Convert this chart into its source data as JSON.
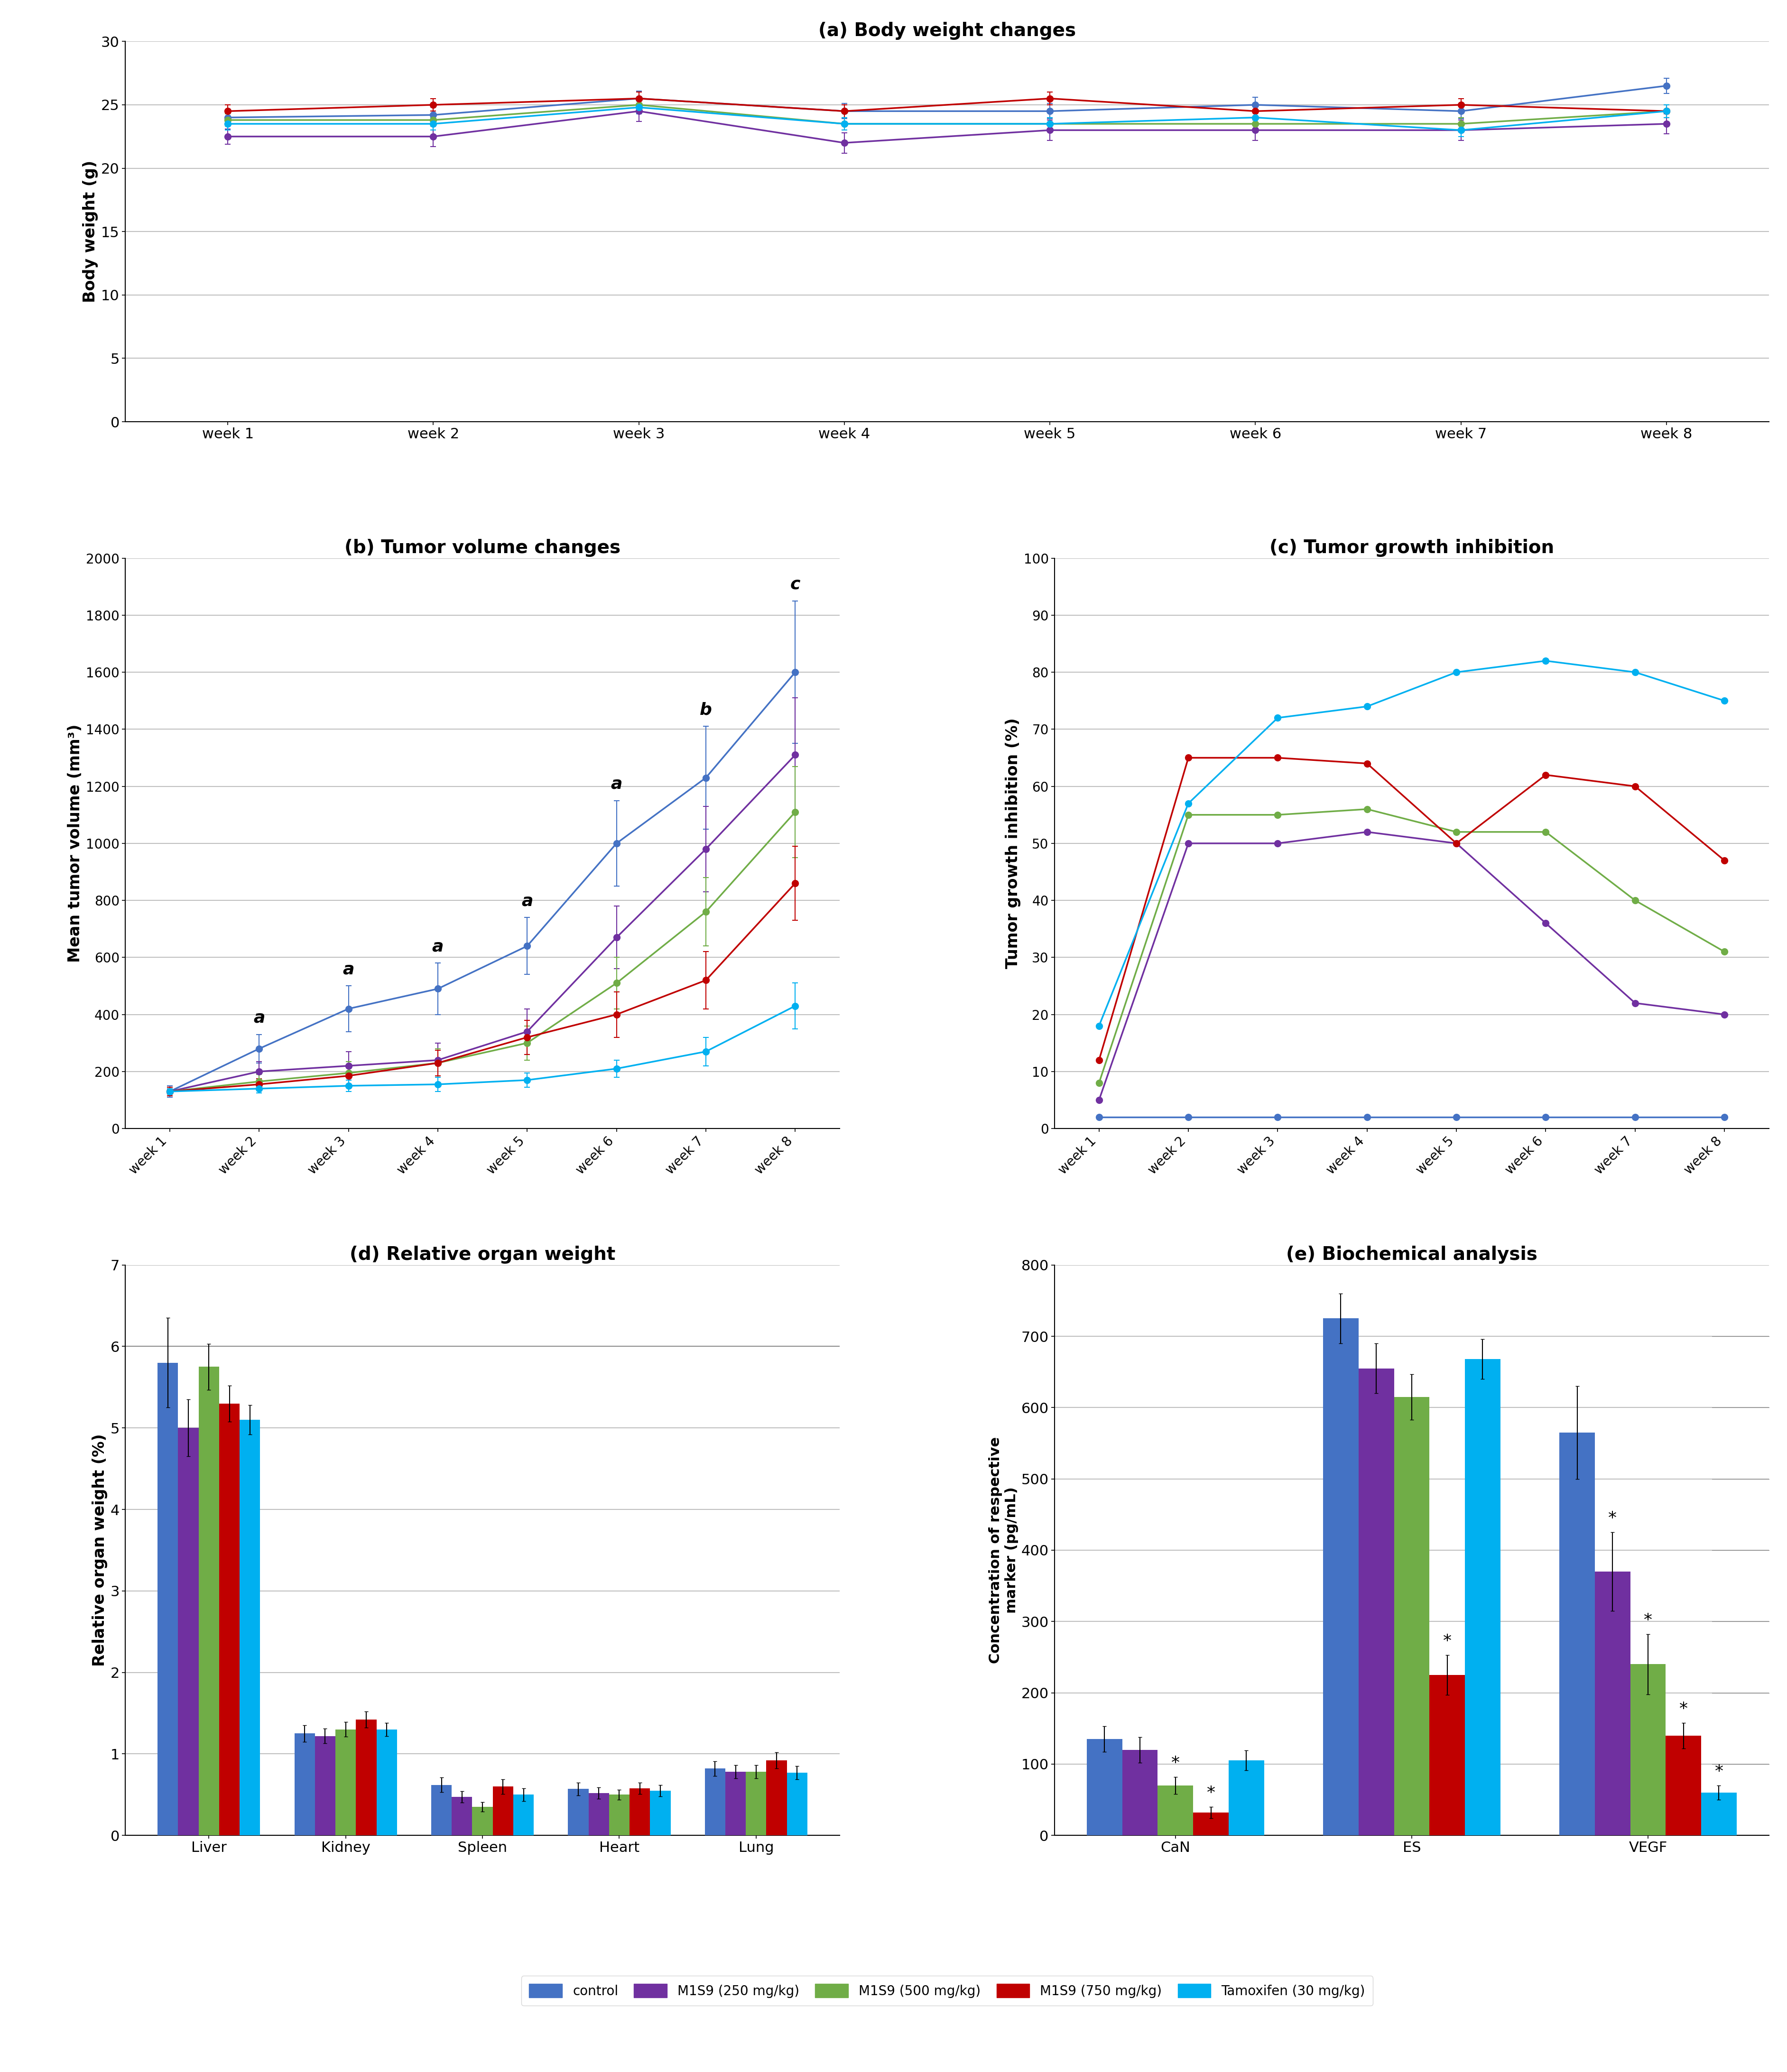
{
  "title_a": "(a) Body weight changes",
  "title_b": "(b) Tumor volume changes",
  "title_c": "(c) Tumor growth inhibition",
  "title_d": "(d) Relative organ weight",
  "title_e": "(e) Biochemical analysis",
  "weeks": [
    "week 1",
    "week 2",
    "week 3",
    "week 4",
    "week 5",
    "week 6",
    "week 7",
    "week 8"
  ],
  "body_weight": {
    "control": [
      24.0,
      24.2,
      25.5,
      24.5,
      24.5,
      25.0,
      24.5,
      26.5
    ],
    "M1S9_250": [
      22.5,
      22.5,
      24.5,
      22.0,
      23.0,
      23.0,
      23.0,
      23.5
    ],
    "M1S9_500": [
      23.8,
      23.8,
      25.0,
      23.5,
      23.5,
      23.5,
      23.5,
      24.5
    ],
    "M1S9_750": [
      24.5,
      25.0,
      25.5,
      24.5,
      25.5,
      24.5,
      25.0,
      24.5
    ],
    "Tamoxifen": [
      23.5,
      23.5,
      24.8,
      23.5,
      23.5,
      24.0,
      23.0,
      24.5
    ]
  },
  "body_weight_err": {
    "control": [
      0.6,
      0.6,
      0.6,
      0.6,
      0.6,
      0.6,
      0.6,
      0.6
    ],
    "M1S9_250": [
      0.6,
      0.8,
      0.8,
      0.8,
      0.8,
      0.8,
      0.8,
      0.8
    ],
    "M1S9_500": [
      0.5,
      0.5,
      0.5,
      0.5,
      0.5,
      0.5,
      0.5,
      0.5
    ],
    "M1S9_750": [
      0.5,
      0.5,
      0.5,
      0.5,
      0.5,
      0.5,
      0.5,
      0.5
    ],
    "Tamoxifen": [
      0.5,
      0.5,
      0.5,
      0.5,
      0.5,
      0.5,
      0.5,
      0.5
    ]
  },
  "tumor_volume": {
    "control": [
      130,
      280,
      420,
      490,
      640,
      1000,
      1230,
      1600
    ],
    "M1S9_250": [
      130,
      200,
      220,
      240,
      340,
      670,
      980,
      1310
    ],
    "M1S9_500": [
      130,
      165,
      195,
      230,
      300,
      510,
      760,
      1110
    ],
    "M1S9_750": [
      130,
      155,
      185,
      230,
      320,
      400,
      520,
      860
    ],
    "Tamoxifen": [
      130,
      140,
      150,
      155,
      170,
      210,
      270,
      430
    ]
  },
  "tumor_volume_err": {
    "control": [
      20,
      50,
      80,
      90,
      100,
      150,
      180,
      250
    ],
    "M1S9_250": [
      15,
      35,
      50,
      60,
      80,
      110,
      150,
      200
    ],
    "M1S9_500": [
      15,
      25,
      40,
      50,
      60,
      90,
      120,
      160
    ],
    "M1S9_750": [
      15,
      20,
      35,
      45,
      60,
      80,
      100,
      130
    ],
    "Tamoxifen": [
      10,
      15,
      20,
      25,
      25,
      30,
      50,
      80
    ]
  },
  "tumor_growth_inhibition": {
    "control": [
      2,
      2,
      2,
      2,
      2,
      2,
      2,
      2
    ],
    "M1S9_250": [
      5,
      50,
      50,
      52,
      50,
      36,
      22,
      20
    ],
    "M1S9_500": [
      8,
      55,
      55,
      56,
      52,
      52,
      40,
      31
    ],
    "M1S9_750": [
      12,
      65,
      65,
      64,
      50,
      62,
      60,
      47
    ],
    "Tamoxifen": [
      18,
      57,
      72,
      74,
      80,
      82,
      80,
      75
    ]
  },
  "organ_weight": {
    "organs": [
      "Liver",
      "Kidney",
      "Spleen",
      "Heart",
      "Lung"
    ],
    "control": [
      5.8,
      1.25,
      0.62,
      0.57,
      0.82
    ],
    "M1S9_250": [
      5.0,
      1.22,
      0.47,
      0.52,
      0.78
    ],
    "M1S9_500": [
      5.75,
      1.3,
      0.35,
      0.5,
      0.78
    ],
    "M1S9_750": [
      5.3,
      1.42,
      0.6,
      0.58,
      0.92
    ],
    "Tamoxifen": [
      5.1,
      1.3,
      0.5,
      0.55,
      0.77
    ]
  },
  "organ_weight_err": {
    "control": [
      0.55,
      0.1,
      0.09,
      0.08,
      0.09
    ],
    "M1S9_250": [
      0.35,
      0.09,
      0.07,
      0.07,
      0.08
    ],
    "M1S9_500": [
      0.28,
      0.09,
      0.06,
      0.06,
      0.08
    ],
    "M1S9_750": [
      0.22,
      0.1,
      0.09,
      0.07,
      0.1
    ],
    "Tamoxifen": [
      0.18,
      0.08,
      0.08,
      0.07,
      0.08
    ]
  },
  "biochemical": {
    "markers": [
      "CaN",
      "ES",
      "VEGF"
    ],
    "control": [
      135,
      725,
      565
    ],
    "M1S9_250": [
      120,
      655,
      370
    ],
    "M1S9_500": [
      70,
      615,
      240
    ],
    "M1S9_750": [
      32,
      225,
      140
    ],
    "Tamoxifen": [
      105,
      668,
      60
    ]
  },
  "biochemical_err": {
    "control": [
      18,
      35,
      65
    ],
    "M1S9_250": [
      18,
      35,
      55
    ],
    "M1S9_500": [
      12,
      32,
      42
    ],
    "M1S9_750": [
      8,
      28,
      18
    ],
    "Tamoxifen": [
      14,
      28,
      10
    ]
  },
  "colors": {
    "control": "#4472C4",
    "M1S9_250": "#7030A0",
    "M1S9_500": "#70AD47",
    "M1S9_750": "#C00000",
    "Tamoxifen": "#00B0F0"
  },
  "legend_labels": [
    "control",
    "M1S9 (250 mg/kg)",
    "M1S9 (500 mg/kg)",
    "M1S9 (750 mg/kg)",
    "Tamoxifen (30 mg/kg)"
  ],
  "background_color": "#FFFFFF",
  "grid_color": "#C0C0C0"
}
